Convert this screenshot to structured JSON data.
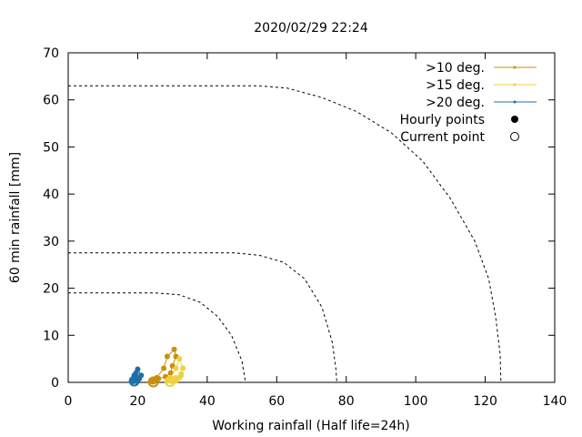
{
  "chart_data": {
    "type": "line",
    "title": "2020/02/29 22:24",
    "xlabel": "Working rainfall (Half life=24h)",
    "ylabel": "60 min rainfall [mm]",
    "xlim": [
      0,
      140
    ],
    "ylim": [
      0,
      70
    ],
    "xticks": [
      0,
      20,
      40,
      60,
      80,
      100,
      120,
      140
    ],
    "yticks": [
      0,
      10,
      20,
      30,
      40,
      50,
      60,
      70
    ],
    "grid": false,
    "legend_position": "top-right",
    "legend": [
      {
        "label": ">10 deg.",
        "color": "#c8900a",
        "kind": "line"
      },
      {
        "label": ">15 deg.",
        "color": "#f0d040",
        "kind": "line"
      },
      {
        "label": ">20 deg.",
        "color": "#1f6fa8",
        "kind": "line"
      },
      {
        "label": "Hourly points",
        "color": "#000000",
        "kind": "filled"
      },
      {
        "label": "Current point",
        "color": "#000000",
        "kind": "open"
      }
    ],
    "threshold_curves": [
      {
        "name": "curve-1",
        "points": [
          [
            0,
            19
          ],
          [
            25,
            19
          ],
          [
            32,
            18.6
          ],
          [
            38,
            17
          ],
          [
            43,
            14
          ],
          [
            47,
            10
          ],
          [
            50,
            4.5
          ],
          [
            51,
            0
          ]
        ]
      },
      {
        "name": "curve-2",
        "points": [
          [
            0,
            27.5
          ],
          [
            48,
            27.5
          ],
          [
            55,
            27
          ],
          [
            62,
            25.5
          ],
          [
            68,
            22
          ],
          [
            73,
            16
          ],
          [
            76,
            8.5
          ],
          [
            77,
            3
          ],
          [
            77.3,
            0
          ]
        ]
      },
      {
        "name": "curve-3",
        "points": [
          [
            0,
            63
          ],
          [
            55,
            63
          ],
          [
            63,
            62.5
          ],
          [
            73,
            60.5
          ],
          [
            83,
            57.5
          ],
          [
            93,
            53
          ],
          [
            102,
            47
          ],
          [
            110,
            39
          ],
          [
            117,
            30
          ],
          [
            121,
            22
          ],
          [
            123,
            14
          ],
          [
            124.3,
            6
          ],
          [
            124.5,
            0
          ]
        ]
      }
    ],
    "series": [
      {
        "name": ">10 deg.",
        "color": "#c8900a",
        "x": [
          24.5,
          25.5,
          27.5,
          28.5,
          30.5,
          31,
          30,
          29.5,
          28,
          26,
          25,
          24,
          24.5
        ],
        "y": [
          0.3,
          1,
          3,
          5.5,
          7,
          5.5,
          3.5,
          2,
          1.2,
          0.8,
          0.5,
          0.2,
          0.1
        ]
      },
      {
        "name": ">15 deg.",
        "color": "#f0d040",
        "x": [
          28.5,
          29.5,
          31,
          32,
          33,
          32.5,
          31,
          30,
          29.5,
          30,
          31,
          32,
          32.5
        ],
        "y": [
          0.3,
          1,
          3,
          5,
          3,
          1.8,
          1,
          0.5,
          0.3,
          0.2,
          0.3,
          1,
          1.5
        ]
      },
      {
        "name": ">20 deg.",
        "color": "#1f6fa8",
        "x": [
          18.5,
          19,
          19.5,
          20,
          21,
          20.5,
          19.5,
          19,
          18.8,
          19.5,
          20.2,
          20
        ],
        "y": [
          0.3,
          1,
          2,
          2.8,
          1.5,
          0.8,
          0.5,
          1.5,
          0.2,
          0.3,
          1,
          0.4
        ]
      }
    ],
    "current_points": [
      {
        "series": ">10 deg.",
        "x": 24.5,
        "y": 0.1
      },
      {
        "series": ">15 deg.",
        "x": 29.3,
        "y": 0.2
      },
      {
        "series": ">20 deg.",
        "x": 19,
        "y": 0.3
      }
    ]
  }
}
